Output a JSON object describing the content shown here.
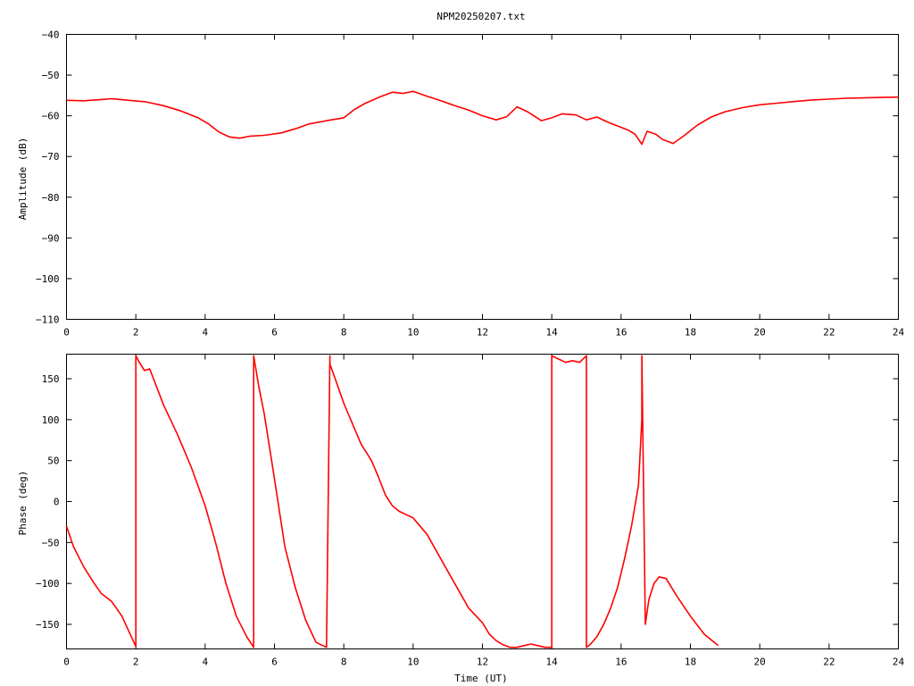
{
  "title": "NPM20250207.txt",
  "colors": {
    "series": "#ff0000",
    "axes": "#000000",
    "background": "#ffffff"
  },
  "chart_data": [
    {
      "type": "line",
      "ylabel": "Amplitude (dB)",
      "xlabel": "",
      "xlim": [
        0,
        24
      ],
      "ylim": [
        -110,
        -40
      ],
      "xticks": [
        "0",
        "2",
        "4",
        "6",
        "8",
        "10",
        "12",
        "14",
        "16",
        "18",
        "20",
        "22",
        "24"
      ],
      "yticks": [
        "-40",
        "-50",
        "-60",
        "-70",
        "-80",
        "-90",
        "-100",
        "-110"
      ],
      "grid": false,
      "series": [
        {
          "x": [
            0,
            0.5,
            1,
            1.3,
            1.8,
            2.3,
            2.8,
            3.3,
            3.8,
            4.1,
            4.4,
            4.7,
            5.0,
            5.3,
            5.7,
            6.2,
            6.6,
            7.0,
            7.5,
            8.0,
            8.3,
            8.6,
            9.0,
            9.4,
            9.7,
            10.0,
            10.4,
            10.8,
            11.2,
            11.6,
            12.0,
            12.4,
            12.7,
            13.0,
            13.3,
            13.7,
            14.0,
            14.3,
            14.7,
            15.0,
            15.3,
            15.6,
            15.9,
            16.2,
            16.4,
            16.6,
            16.75,
            17.0,
            17.2,
            17.5,
            17.8,
            18.2,
            18.6,
            19.0,
            19.5,
            20.0,
            20.5,
            21.0,
            21.5,
            22.0,
            22.5,
            23.0,
            23.5,
            24.0
          ],
          "y": [
            -56.2,
            -56.3,
            -56.0,
            -55.8,
            -56.2,
            -56.6,
            -57.5,
            -58.8,
            -60.5,
            -62.0,
            -64.0,
            -65.2,
            -65.5,
            -65.0,
            -64.8,
            -64.2,
            -63.2,
            -62.0,
            -61.2,
            -60.5,
            -58.5,
            -57.0,
            -55.5,
            -54.2,
            -54.5,
            -54.0,
            -55.2,
            -56.3,
            -57.5,
            -58.6,
            -60.0,
            -61.0,
            -60.2,
            -57.8,
            -59.0,
            -61.2,
            -60.5,
            -59.5,
            -59.8,
            -61.0,
            -60.3,
            -61.5,
            -62.5,
            -63.5,
            -64.5,
            -67.0,
            -63.8,
            -64.5,
            -65.8,
            -66.8,
            -65.0,
            -62.3,
            -60.3,
            -59.0,
            -58.0,
            -57.3,
            -56.9,
            -56.5,
            -56.1,
            -55.9,
            -55.7,
            -55.6,
            -55.5,
            -55.4
          ]
        }
      ]
    },
    {
      "type": "line",
      "ylabel": "Phase (deg)",
      "xlabel": "Time (UT)",
      "xlim": [
        0,
        24
      ],
      "ylim": [
        -180,
        180
      ],
      "xticks": [
        "0",
        "2",
        "4",
        "6",
        "8",
        "10",
        "12",
        "14",
        "16",
        "18",
        "20",
        "22",
        "24"
      ],
      "yticks": [
        "150",
        "100",
        "50",
        "0",
        "-50",
        "-100",
        "-150"
      ],
      "ytick_values": [
        150,
        100,
        50,
        0,
        -50,
        -100,
        -150
      ],
      "grid": false,
      "series": [
        {
          "x": [
            0,
            0.2,
            0.5,
            0.8,
            1.0,
            1.3,
            1.6,
            2.0,
            2.0,
            2.1,
            2.25,
            2.4,
            2.6,
            2.8,
            3.2,
            3.6,
            4.0,
            4.3,
            4.6,
            4.9,
            5.2,
            5.4,
            5.4,
            5.55,
            5.7,
            5.9,
            6.1,
            6.3,
            6.6,
            6.9,
            7.2,
            7.5,
            7.6,
            7.6,
            7.75,
            8.0,
            8.2,
            8.5,
            8.8,
            9.0,
            9.2,
            9.4,
            9.6,
            10.0,
            10.4,
            10.8,
            11.2,
            11.6,
            12.0,
            12.2,
            12.4,
            12.6,
            12.8,
            13.0,
            13.2,
            13.4,
            13.6,
            13.8,
            14.0,
            14.0,
            14.2,
            14.4,
            14.6,
            14.8,
            15.0,
            15.0,
            15.1,
            15.3,
            15.5,
            15.7,
            15.9,
            16.1,
            16.3,
            16.5,
            16.6,
            16.6,
            16.7,
            16.8,
            16.95,
            17.1,
            17.3,
            17.6,
            18.0,
            18.4,
            18.8
          ],
          "y": [
            -30,
            -55,
            -80,
            -100,
            -112,
            -122,
            -140,
            -177,
            178,
            170,
            160,
            162,
            140,
            118,
            82,
            42,
            -5,
            -50,
            -100,
            -140,
            -165,
            -178,
            178,
            140,
            108,
            55,
            0,
            -55,
            -105,
            -145,
            -172,
            -178,
            178,
            168,
            150,
            120,
            100,
            70,
            50,
            30,
            8,
            -5,
            -12,
            -20,
            -40,
            -70,
            -100,
            -130,
            -148,
            -162,
            -170,
            -175,
            -178,
            -178,
            -176,
            -174,
            -176,
            -178,
            -178,
            178,
            174,
            170,
            172,
            170,
            178,
            -178,
            -175,
            -165,
            -150,
            -130,
            -105,
            -70,
            -30,
            20,
            100,
            178,
            -150,
            -120,
            -100,
            -92,
            -94,
            -115,
            -140,
            -162,
            -176
          ]
        }
      ]
    }
  ]
}
